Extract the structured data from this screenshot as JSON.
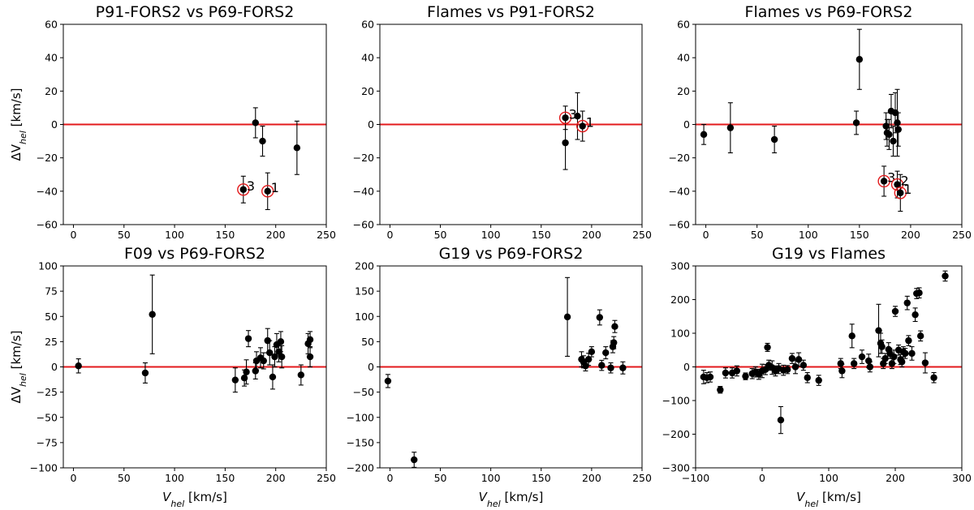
{
  "chart_data": [
    {
      "type": "scatter",
      "title": "P91-FORS2 vs P69-FORS2",
      "ylabel": "ΔV",
      "ylabel_sub": "hel",
      "ylabel_unit": " [km/s]",
      "xlabel": "",
      "xlim": [
        -10,
        250
      ],
      "ylim": [
        -60,
        60
      ],
      "xticks": [
        0,
        50,
        100,
        150,
        200,
        250
      ],
      "yticks": [
        -60,
        -40,
        -20,
        0,
        20,
        40,
        60
      ],
      "hline_y": 0,
      "points": [
        {
          "x": 180,
          "y": 1,
          "err": 9
        },
        {
          "x": 187,
          "y": -10,
          "err": 9
        },
        {
          "x": 221,
          "y": -14,
          "err": 16
        },
        {
          "x": 168,
          "y": -39,
          "err": 8,
          "highlight": true,
          "label": "3"
        },
        {
          "x": 192,
          "y": -40,
          "err": 11,
          "highlight": true,
          "label": "1"
        }
      ]
    },
    {
      "type": "scatter",
      "title": "Flames vs P91-FORS2",
      "ylabel": "",
      "ylabel_sub": "",
      "ylabel_unit": "",
      "xlabel": "",
      "xlim": [
        -10,
        250
      ],
      "ylim": [
        -60,
        60
      ],
      "xticks": [
        0,
        50,
        100,
        150,
        200,
        250
      ],
      "yticks": [
        -60,
        -40,
        -20,
        0,
        20,
        40,
        60
      ],
      "hline_y": 0,
      "points": [
        {
          "x": 174,
          "y": -11,
          "err": 16
        },
        {
          "x": 186,
          "y": 5,
          "err": 14
        },
        {
          "x": 174,
          "y": 4,
          "err": 7,
          "highlight": true,
          "label": "3"
        },
        {
          "x": 191,
          "y": -1,
          "err": 9,
          "highlight": true,
          "label": "1"
        }
      ]
    },
    {
      "type": "scatter",
      "title": "Flames vs P69-FORS2",
      "ylabel": "",
      "ylabel_sub": "",
      "ylabel_unit": "",
      "xlabel": "",
      "xlim": [
        -10,
        250
      ],
      "ylim": [
        -60,
        60
      ],
      "xticks": [
        0,
        50,
        100,
        150,
        200,
        250
      ],
      "yticks": [
        -60,
        -40,
        -20,
        0,
        20,
        40,
        60
      ],
      "hline_y": 0,
      "points": [
        {
          "x": -2,
          "y": -6,
          "err": 6
        },
        {
          "x": 24,
          "y": -2,
          "err": 15
        },
        {
          "x": 67,
          "y": -9,
          "err": 8
        },
        {
          "x": 147,
          "y": 1,
          "err": 7
        },
        {
          "x": 150,
          "y": 39,
          "err": 18
        },
        {
          "x": 176,
          "y": -1,
          "err": 8
        },
        {
          "x": 177,
          "y": -5,
          "err": 8
        },
        {
          "x": 179,
          "y": -6,
          "err": 9
        },
        {
          "x": 181,
          "y": 8,
          "err": 10
        },
        {
          "x": 183,
          "y": -10,
          "err": 9
        },
        {
          "x": 185,
          "y": 7,
          "err": 12
        },
        {
          "x": 187,
          "y": 1,
          "err": 20
        },
        {
          "x": 188,
          "y": -3,
          "err": 10
        },
        {
          "x": 174,
          "y": -34,
          "err": 9,
          "highlight": true,
          "label": "3"
        },
        {
          "x": 187,
          "y": -36,
          "err": 8,
          "highlight": true,
          "label": "2"
        },
        {
          "x": 190,
          "y": -41,
          "err": 11,
          "highlight": true,
          "label": "1"
        }
      ]
    },
    {
      "type": "scatter",
      "title": "F09 vs P69-FORS2",
      "ylabel": "ΔV",
      "ylabel_sub": "hel",
      "ylabel_unit": " [km/s]",
      "xlabel": "V",
      "xlabel_sub": "hel",
      "xlabel_unit": " [km/s]",
      "xlim": [
        -10,
        250
      ],
      "ylim": [
        -100,
        100
      ],
      "xticks": [
        0,
        50,
        100,
        150,
        200,
        250
      ],
      "yticks": [
        -100,
        -75,
        -50,
        -25,
        0,
        25,
        50,
        75,
        100
      ],
      "hline_y": 0,
      "points": [
        {
          "x": 5,
          "y": 1,
          "err": 7
        },
        {
          "x": 71,
          "y": -6,
          "err": 10
        },
        {
          "x": 78,
          "y": 52,
          "err": 39
        },
        {
          "x": 160,
          "y": -13,
          "err": 12
        },
        {
          "x": 169,
          "y": -11,
          "err": 8
        },
        {
          "x": 171,
          "y": -5,
          "err": 12
        },
        {
          "x": 173,
          "y": 28,
          "err": 8
        },
        {
          "x": 180,
          "y": -4,
          "err": 8
        },
        {
          "x": 181,
          "y": 6,
          "err": 9
        },
        {
          "x": 185,
          "y": 9,
          "err": 10
        },
        {
          "x": 188,
          "y": 6,
          "err": 8
        },
        {
          "x": 192,
          "y": 26,
          "err": 12
        },
        {
          "x": 194,
          "y": 14,
          "err": 12
        },
        {
          "x": 197,
          "y": -10,
          "err": 12
        },
        {
          "x": 199,
          "y": 10,
          "err": 10
        },
        {
          "x": 201,
          "y": 22,
          "err": 11
        },
        {
          "x": 203,
          "y": 15,
          "err": 10
        },
        {
          "x": 205,
          "y": 25,
          "err": 10
        },
        {
          "x": 206,
          "y": 10,
          "err": 11
        },
        {
          "x": 225,
          "y": -8,
          "err": 10
        },
        {
          "x": 232,
          "y": 23,
          "err": 10
        },
        {
          "x": 234,
          "y": 27,
          "err": 8
        },
        {
          "x": 234,
          "y": 10,
          "err": 10
        }
      ]
    },
    {
      "type": "scatter",
      "title": "G19 vs P69-FORS2",
      "ylabel": "",
      "ylabel_sub": "",
      "ylabel_unit": "",
      "xlabel": "V",
      "xlabel_sub": "hel",
      "xlabel_unit": " [km/s]",
      "xlim": [
        -10,
        250
      ],
      "ylim": [
        -200,
        200
      ],
      "xticks": [
        0,
        50,
        100,
        150,
        200,
        250
      ],
      "yticks": [
        -200,
        -150,
        -100,
        -50,
        0,
        50,
        100,
        150,
        200
      ],
      "hline_y": 0,
      "points": [
        {
          "x": -2,
          "y": -28,
          "err": 13
        },
        {
          "x": 24,
          "y": -184,
          "err": 15
        },
        {
          "x": 176,
          "y": 99,
          "err": 78
        },
        {
          "x": 190,
          "y": 15,
          "err": 15
        },
        {
          "x": 192,
          "y": 10,
          "err": 12
        },
        {
          "x": 194,
          "y": 2,
          "err": 10
        },
        {
          "x": 197,
          "y": 15,
          "err": 12
        },
        {
          "x": 200,
          "y": 30,
          "err": 10
        },
        {
          "x": 208,
          "y": 98,
          "err": 15
        },
        {
          "x": 210,
          "y": 3,
          "err": 10
        },
        {
          "x": 214,
          "y": 28,
          "err": 12
        },
        {
          "x": 219,
          "y": -2,
          "err": 10
        },
        {
          "x": 221,
          "y": 40,
          "err": 12
        },
        {
          "x": 222,
          "y": 48,
          "err": 12
        },
        {
          "x": 223,
          "y": 80,
          "err": 12
        },
        {
          "x": 231,
          "y": -2,
          "err": 12
        }
      ]
    },
    {
      "type": "scatter",
      "title": "G19 vs Flames",
      "ylabel": "",
      "ylabel_sub": "",
      "ylabel_unit": "",
      "xlabel": "V",
      "xlabel_sub": "hel",
      "xlabel_unit": " [km/s]",
      "xlim": [
        -100,
        300
      ],
      "ylim": [
        -300,
        300
      ],
      "xticks": [
        -100,
        0,
        100,
        200,
        300
      ],
      "yticks": [
        -300,
        -200,
        -100,
        0,
        100,
        200,
        300
      ],
      "hline_y": 0,
      "points": [
        {
          "x": -88,
          "y": -30,
          "err": 20
        },
        {
          "x": -83,
          "y": -32,
          "err": 15
        },
        {
          "x": -78,
          "y": -30,
          "err": 15
        },
        {
          "x": -63,
          "y": -68,
          "err": 10
        },
        {
          "x": -55,
          "y": -18,
          "err": 15
        },
        {
          "x": -45,
          "y": -18,
          "err": 15
        },
        {
          "x": -38,
          "y": -12,
          "err": 15
        },
        {
          "x": -25,
          "y": -28,
          "err": 10
        },
        {
          "x": -15,
          "y": -20,
          "err": 15
        },
        {
          "x": -10,
          "y": -15,
          "err": 15
        },
        {
          "x": -5,
          "y": -22,
          "err": 15
        },
        {
          "x": 0,
          "y": -12,
          "err": 20
        },
        {
          "x": 5,
          "y": -8,
          "err": 15
        },
        {
          "x": 8,
          "y": 58,
          "err": 12
        },
        {
          "x": 10,
          "y": 5,
          "err": 15
        },
        {
          "x": 15,
          "y": -2,
          "err": 20
        },
        {
          "x": 20,
          "y": -12,
          "err": 15
        },
        {
          "x": 25,
          "y": -5,
          "err": 15
        },
        {
          "x": 28,
          "y": -158,
          "err": 40
        },
        {
          "x": 32,
          "y": -10,
          "err": 15
        },
        {
          "x": 38,
          "y": -8,
          "err": 12
        },
        {
          "x": 45,
          "y": 25,
          "err": 15
        },
        {
          "x": 50,
          "y": 0,
          "err": 20
        },
        {
          "x": 55,
          "y": 22,
          "err": 20
        },
        {
          "x": 62,
          "y": 5,
          "err": 15
        },
        {
          "x": 68,
          "y": -32,
          "err": 15
        },
        {
          "x": 85,
          "y": -40,
          "err": 15
        },
        {
          "x": 118,
          "y": 10,
          "err": 15
        },
        {
          "x": 120,
          "y": -12,
          "err": 20
        },
        {
          "x": 135,
          "y": 92,
          "err": 35
        },
        {
          "x": 138,
          "y": 10,
          "err": 15
        },
        {
          "x": 150,
          "y": 30,
          "err": 20
        },
        {
          "x": 160,
          "y": 18,
          "err": 20
        },
        {
          "x": 162,
          "y": 0,
          "err": 15
        },
        {
          "x": 175,
          "y": 108,
          "err": 78
        },
        {
          "x": 178,
          "y": 70,
          "err": 30
        },
        {
          "x": 180,
          "y": 60,
          "err": 20
        },
        {
          "x": 182,
          "y": 10,
          "err": 15
        },
        {
          "x": 185,
          "y": 25,
          "err": 15
        },
        {
          "x": 190,
          "y": 52,
          "err": 20
        },
        {
          "x": 192,
          "y": 40,
          "err": 15
        },
        {
          "x": 195,
          "y": 10,
          "err": 15
        },
        {
          "x": 198,
          "y": 30,
          "err": 20
        },
        {
          "x": 200,
          "y": 165,
          "err": 15
        },
        {
          "x": 205,
          "y": 50,
          "err": 15
        },
        {
          "x": 208,
          "y": 22,
          "err": 15
        },
        {
          "x": 210,
          "y": 15,
          "err": 15
        },
        {
          "x": 212,
          "y": 45,
          "err": 15
        },
        {
          "x": 215,
          "y": 40,
          "err": 15
        },
        {
          "x": 218,
          "y": 190,
          "err": 20
        },
        {
          "x": 220,
          "y": 78,
          "err": 15
        },
        {
          "x": 225,
          "y": 40,
          "err": 20
        },
        {
          "x": 230,
          "y": 155,
          "err": 20
        },
        {
          "x": 232,
          "y": 218,
          "err": 15
        },
        {
          "x": 236,
          "y": 220,
          "err": 15
        },
        {
          "x": 238,
          "y": 92,
          "err": 15
        },
        {
          "x": 245,
          "y": 12,
          "err": 30
        },
        {
          "x": 258,
          "y": -32,
          "err": 15
        },
        {
          "x": 275,
          "y": 270,
          "err": 15
        }
      ]
    }
  ]
}
